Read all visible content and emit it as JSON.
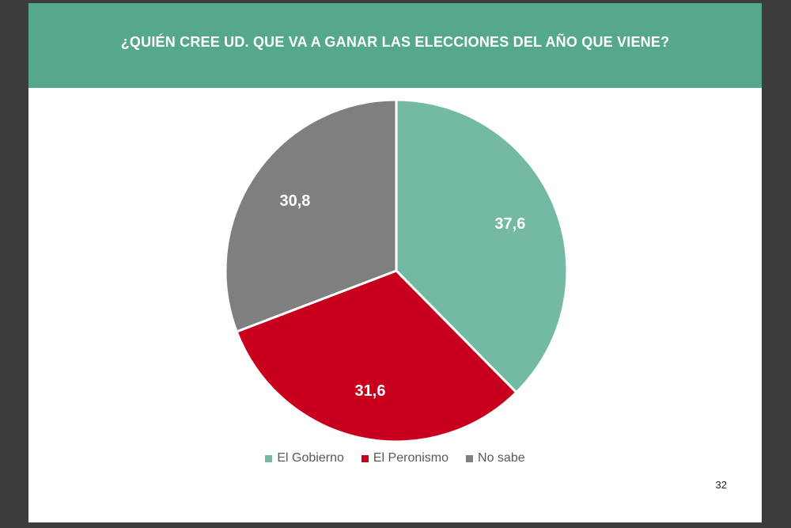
{
  "header": {
    "title": "¿QUIÉN CREE UD. QUE VA A GANAR LAS ELECCIONES DEL AÑO QUE VIENE?"
  },
  "colors": {
    "header_background": "#55a88a",
    "frame_background": "#3c3c3c"
  },
  "chart_data": {
    "type": "pie",
    "title": "¿QUIÉN CREE UD. QUE VA A GANAR LAS ELECCIONES DEL AÑO QUE VIENE?",
    "categories": [
      "El Gobierno",
      "El Peronismo",
      "No sabe"
    ],
    "values": [
      37.6,
      31.6,
      30.8
    ],
    "value_labels": [
      "37,6",
      "31,6",
      "30,8"
    ],
    "colors": [
      "#74b9a3",
      "#c8001e",
      "#7f7f7f"
    ],
    "legend_position": "bottom",
    "start_angle": "12 o'clock, clockwise"
  },
  "page": {
    "number": "32"
  }
}
